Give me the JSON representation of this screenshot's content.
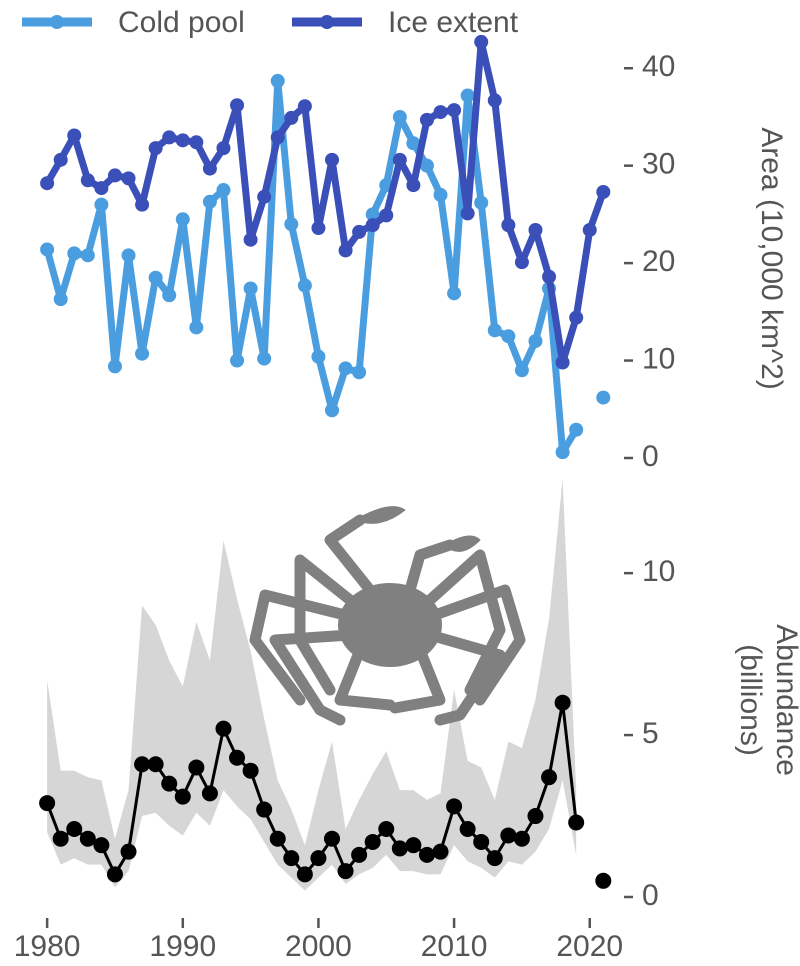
{
  "chart_data": [
    {
      "type": "line",
      "x": [
        1980,
        1981,
        1982,
        1983,
        1984,
        1985,
        1986,
        1987,
        1988,
        1989,
        1990,
        1991,
        1992,
        1993,
        1994,
        1995,
        1996,
        1997,
        1998,
        1999,
        2000,
        2001,
        2002,
        2003,
        2004,
        2005,
        2006,
        2007,
        2008,
        2009,
        2010,
        2011,
        2012,
        2013,
        2014,
        2015,
        2016,
        2017,
        2018,
        2019,
        2020,
        2021
      ],
      "series": [
        {
          "name": "Cold pool",
          "color": "#4a9ee0",
          "values": [
            21.4,
            16.3,
            21,
            20.8,
            26,
            9.4,
            20.8,
            10.7,
            18.5,
            16.7,
            24.5,
            13.4,
            26.3,
            27.5,
            10,
            17.4,
            10.2,
            38.7,
            24,
            17.7,
            10.4,
            4.9,
            9.2,
            8.8,
            25,
            28,
            35,
            32.3,
            30,
            27,
            16.9,
            37.2,
            26.2,
            13.1,
            12.5,
            9,
            12,
            17.4,
            0.6,
            2.9,
            null,
            6.2
          ]
        },
        {
          "name": "Ice extent",
          "color": "#3b4fb8",
          "values": [
            28.2,
            30.6,
            33.1,
            28.5,
            27.7,
            29,
            28.7,
            26,
            31.8,
            32.9,
            32.6,
            32.4,
            29.7,
            31.8,
            36.2,
            22.4,
            26.8,
            32.9,
            34.9,
            36.1,
            23.6,
            30.6,
            21.3,
            23.2,
            23.9,
            24.9,
            30.6,
            28,
            34.7,
            35.5,
            35.7,
            25.1,
            42.7,
            36.7,
            23.9,
            20.1,
            23.4,
            18.6,
            9.8,
            14.4,
            23.4,
            27.3
          ]
        }
      ],
      "xlim": [
        1978,
        2024
      ],
      "ylim": [
        0,
        43
      ],
      "yticks": [
        0,
        10,
        20,
        30,
        40
      ],
      "y_label": "Area (10,000 km^2)",
      "grid": false,
      "legend": "top"
    },
    {
      "type": "line",
      "x": [
        1980,
        1981,
        1982,
        1983,
        1984,
        1985,
        1986,
        1987,
        1988,
        1989,
        1990,
        1991,
        1992,
        1993,
        1994,
        1995,
        1996,
        1997,
        1998,
        1999,
        2000,
        2001,
        2002,
        2003,
        2004,
        2005,
        2006,
        2007,
        2008,
        2009,
        2010,
        2011,
        2012,
        2013,
        2014,
        2015,
        2016,
        2017,
        2018,
        2019,
        2020,
        2021
      ],
      "series": [
        {
          "color": "#000000",
          "band_color": "#d6d6d6",
          "values": [
            2.9,
            1.8,
            2.1,
            1.8,
            1.6,
            0.7,
            1.4,
            4.1,
            4.1,
            3.5,
            3.1,
            4.0,
            3.2,
            5.2,
            4.3,
            3.9,
            2.7,
            1.8,
            1.2,
            0.7,
            1.2,
            1.8,
            0.8,
            1.3,
            1.7,
            2.1,
            1.5,
            1.6,
            1.3,
            1.4,
            2.8,
            2.1,
            1.7,
            1.2,
            1.9,
            1.8,
            2.5,
            3.7,
            6.0,
            2.3,
            null,
            0.5
          ],
          "band_lower": [
            2.0,
            1.0,
            1.2,
            1.0,
            1.0,
            0.3,
            0.8,
            2.5,
            2.6,
            2.2,
            1.9,
            2.6,
            2.2,
            3.3,
            2.8,
            2.4,
            1.7,
            1.0,
            0.6,
            0.2,
            0.6,
            1.0,
            0.4,
            0.7,
            0.9,
            1.3,
            0.8,
            0.8,
            0.7,
            0.7,
            1.6,
            1.1,
            0.9,
            0.6,
            1.1,
            1.0,
            1.4,
            2.1,
            3.6,
            1.3,
            null,
            0.2
          ],
          "band_upper": [
            6.7,
            3.9,
            3.9,
            3.7,
            3.6,
            1.8,
            3.3,
            9.0,
            8.4,
            7.3,
            6.5,
            8.5,
            7.3,
            11.0,
            9.2,
            7.6,
            5.5,
            3.6,
            2.7,
            1.6,
            3.3,
            4.8,
            2.1,
            3.0,
            3.8,
            4.5,
            3.3,
            3.3,
            3.0,
            3.2,
            6.4,
            4.2,
            4.0,
            3.0,
            4.8,
            4.6,
            6.1,
            8.6,
            12.9,
            3.3,
            null,
            0.8
          ]
        }
      ],
      "xlim": [
        1978,
        2024
      ],
      "xticks": [
        1980,
        1990,
        2000,
        2010,
        2020
      ],
      "ylim": [
        0,
        13
      ],
      "yticks": [
        0,
        5,
        10
      ],
      "y_label_lines": [
        "Abundance",
        "(billions)"
      ],
      "grid": false
    }
  ]
}
